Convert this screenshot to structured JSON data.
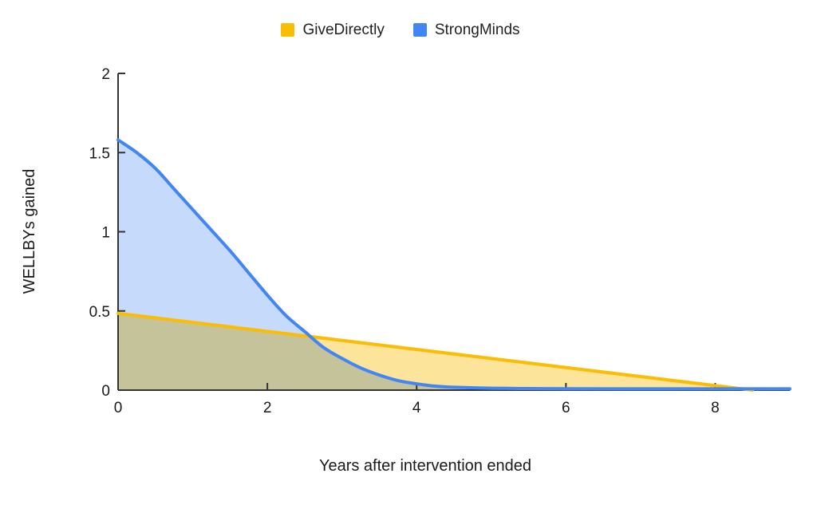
{
  "chart_data": {
    "type": "area",
    "title": "",
    "xlabel": "Years after intervention ended",
    "ylabel": "WELLBYs gained",
    "xlim": [
      0,
      9
    ],
    "ylim": [
      0,
      2
    ],
    "x_ticks": [
      0,
      2,
      4,
      6,
      8
    ],
    "y_ticks": [
      0,
      0.5,
      1,
      1.5,
      2
    ],
    "grid": false,
    "legend_position": "top",
    "axis_color": "#333333",
    "series": [
      {
        "name": "GiveDirectly",
        "color": "#FBBC04",
        "fill_opacity": 0.4,
        "x": [
          0,
          8.5
        ],
        "y": [
          0.485,
          0
        ]
      },
      {
        "name": "StrongMinds",
        "color": "#4285F4",
        "fill_opacity": 0.3,
        "x": [
          0,
          0.25,
          0.5,
          0.75,
          1,
          1.25,
          1.5,
          1.75,
          2,
          2.25,
          2.5,
          2.75,
          3,
          3.25,
          3.5,
          3.75,
          4,
          4.25,
          4.5,
          5,
          5.5,
          6,
          7,
          8,
          9
        ],
        "y": [
          1.58,
          1.5,
          1.4,
          1.27,
          1.14,
          1.01,
          0.88,
          0.74,
          0.6,
          0.47,
          0.37,
          0.27,
          0.2,
          0.14,
          0.095,
          0.06,
          0.04,
          0.025,
          0.018,
          0.012,
          0.01,
          0.009,
          0.008,
          0.008,
          0.008
        ]
      }
    ]
  }
}
